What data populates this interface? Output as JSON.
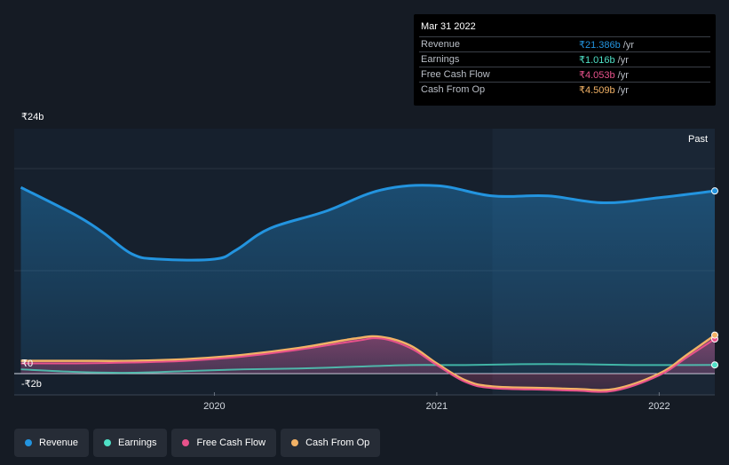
{
  "tooltip": {
    "date": "Mar 31 2022",
    "rows": [
      {
        "label": "Revenue",
        "value": "₹21.386b",
        "unit": "/yr",
        "color": "#2394df"
      },
      {
        "label": "Earnings",
        "value": "₹1.016b",
        "unit": "/yr",
        "color": "#4fe0c6"
      },
      {
        "label": "Free Cash Flow",
        "value": "₹4.053b",
        "unit": "/yr",
        "color": "#e8528b"
      },
      {
        "label": "Cash From Op",
        "value": "₹4.509b",
        "unit": "/yr",
        "color": "#f2b266"
      }
    ]
  },
  "legend": [
    {
      "label": "Revenue",
      "color": "#2394df"
    },
    {
      "label": "Earnings",
      "color": "#4fe0c6"
    },
    {
      "label": "Free Cash Flow",
      "color": "#e8528b"
    },
    {
      "label": "Cash From Op",
      "color": "#f2b266"
    }
  ],
  "chart_data": {
    "type": "area",
    "past_label": "Past",
    "y_tick_labels": [
      {
        "value": 24,
        "label": "₹24b"
      },
      {
        "value": 0,
        "label": "₹0"
      },
      {
        "value": -2,
        "label": "-₹2b"
      }
    ],
    "x_ticks": [
      {
        "value": 2020.0,
        "label": "2020"
      },
      {
        "value": 2021.0,
        "label": "2021"
      },
      {
        "value": 2022.0,
        "label": "2022"
      }
    ],
    "xlim": [
      2019.1,
      2022.25
    ],
    "ylim": [
      -2,
      24
    ],
    "past_start_x": 2021.25,
    "series": [
      {
        "name": "Revenue",
        "color": "#2394df",
        "x": [
          2019.13,
          2019.38,
          2019.5,
          2019.63,
          2019.75,
          2020.0,
          2020.1,
          2020.25,
          2020.5,
          2020.75,
          2021.0,
          2021.25,
          2021.5,
          2021.75,
          2022.0,
          2022.25
        ],
        "y": [
          21.8,
          18.5,
          16.5,
          14.0,
          13.4,
          13.4,
          14.5,
          17.0,
          19.0,
          21.5,
          22.0,
          20.8,
          20.8,
          20.0,
          20.6,
          21.386
        ]
      },
      {
        "name": "Earnings",
        "color": "#4fe0c6",
        "x": [
          2019.13,
          2019.38,
          2019.63,
          2019.88,
          2020.13,
          2020.38,
          2020.63,
          2020.88,
          2021.13,
          2021.38,
          2021.63,
          2021.88,
          2022.13,
          2022.25
        ],
        "y": [
          0.5,
          0.2,
          0.1,
          0.3,
          0.5,
          0.6,
          0.8,
          1.0,
          1.0,
          1.1,
          1.1,
          1.0,
          1.0,
          1.016
        ]
      },
      {
        "name": "Free Cash Flow",
        "color": "#e8528b",
        "x": [
          2019.13,
          2019.38,
          2019.63,
          2019.88,
          2020.13,
          2020.38,
          2020.63,
          2020.75,
          2020.88,
          2021.0,
          2021.13,
          2021.25,
          2021.5,
          2021.63,
          2021.8,
          2022.0,
          2022.13,
          2022.25
        ],
        "y": [
          1.2,
          1.2,
          1.3,
          1.5,
          2.0,
          2.8,
          3.8,
          4.1,
          3.0,
          1.0,
          -1.0,
          -1.7,
          -1.9,
          -2.0,
          -2.0,
          -0.2,
          2.0,
          4.053
        ]
      },
      {
        "name": "Cash From Op",
        "color": "#f2b266",
        "x": [
          2019.13,
          2019.38,
          2019.63,
          2019.88,
          2020.13,
          2020.38,
          2020.63,
          2020.75,
          2020.88,
          2021.0,
          2021.13,
          2021.25,
          2021.5,
          2021.63,
          2021.8,
          2022.0,
          2022.13,
          2022.25
        ],
        "y": [
          1.5,
          1.5,
          1.5,
          1.7,
          2.2,
          3.0,
          4.1,
          4.3,
          3.3,
          1.2,
          -0.8,
          -1.5,
          -1.7,
          -1.8,
          -1.8,
          0.0,
          2.3,
          4.509
        ]
      }
    ]
  }
}
